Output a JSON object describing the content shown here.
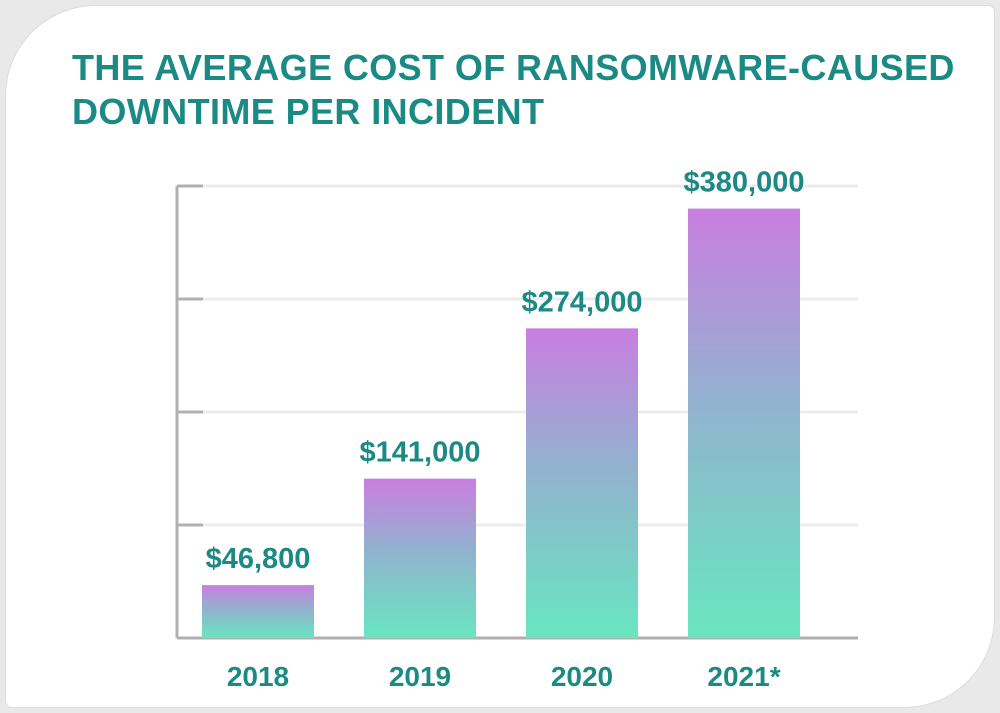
{
  "title_lines": [
    "THE AVERAGE COST OF RANSOMWARE-CAUSED",
    "DOWNTIME PER INCIDENT"
  ],
  "colors": {
    "title": "#1b8a84",
    "labels": "#1b8a84",
    "bar_top": "#c97ee0",
    "bar_mid": "#92b2cf",
    "bar_bottom": "#68e6c0",
    "axis": "#b0b0b0",
    "grid": "#ececec"
  },
  "chart_data": {
    "type": "bar",
    "title": "THE AVERAGE COST OF RANSOMWARE-CAUSED DOWNTIME PER INCIDENT",
    "categories": [
      "2018",
      "2019",
      "2020",
      "2021*"
    ],
    "values": [
      46800,
      141000,
      274000,
      380000
    ],
    "data_labels": [
      "$46,800",
      "$141,000",
      "$274,000",
      "$380,000"
    ],
    "xlabel": "",
    "ylabel": "",
    "ylim": [
      0,
      400000
    ],
    "grid": true,
    "legend": "none"
  }
}
